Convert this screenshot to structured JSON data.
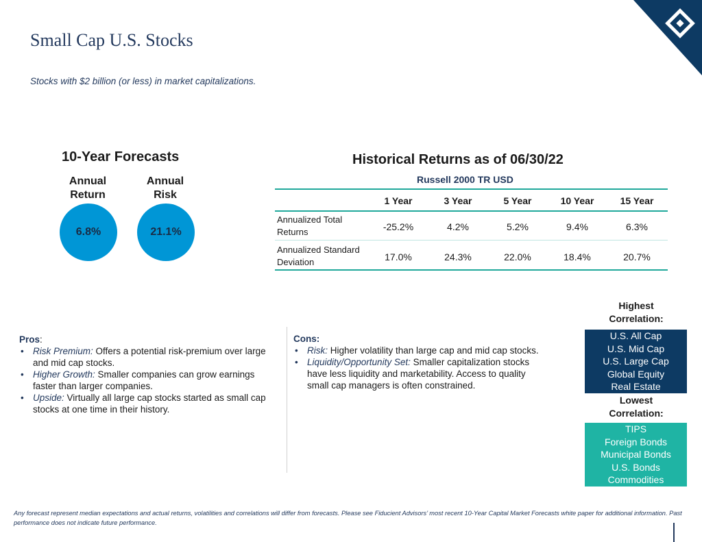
{
  "header": {
    "title": "Small Cap U.S. Stocks",
    "subtitle": "Stocks with $2 billion (or less) in market capitalizations."
  },
  "logo": {
    "icon": "diamond-logo-icon",
    "color": "#0d3a63"
  },
  "forecasts": {
    "heading": "10-Year Forecasts",
    "return_label_1": "Annual",
    "return_label_2": "Return",
    "risk_label_1": "Annual",
    "risk_label_2": "Risk",
    "return_value": "6.8%",
    "risk_value": "21.1%",
    "circle_color": "#0096d6"
  },
  "historical": {
    "heading": "Historical Returns as of 06/30/22",
    "benchmark": "Russell 2000 TR USD",
    "columns": [
      "1 Year",
      "3 Year",
      "5 Year",
      "10 Year",
      "15 Year"
    ],
    "rows": [
      {
        "label": "Annualized Total Returns",
        "values": [
          "-25.2%",
          "4.2%",
          "5.2%",
          "9.4%",
          "6.3%"
        ]
      },
      {
        "label": "Annualized Standard Deviation",
        "values": [
          "17.0%",
          "24.3%",
          "22.0%",
          "18.4%",
          "20.7%"
        ]
      }
    ]
  },
  "pros": {
    "heading": "Pros",
    "items": [
      {
        "term": "Risk Premium:",
        "text": " Offers a potential risk-premium over large and mid cap stocks."
      },
      {
        "term": "Higher Growth:",
        "text": " Smaller companies can grow earnings faster than larger companies."
      },
      {
        "term": "Upside:",
        "text": " Virtually all large cap stocks started as small cap stocks at one time in their history."
      }
    ]
  },
  "cons": {
    "heading": "Cons:",
    "items": [
      {
        "term": "Risk:",
        "text": " Higher volatility than large cap and mid cap stocks."
      },
      {
        "term": "Liquidity/Opportunity Set:",
        "text": " Smaller capitalization stocks have less liquidity and marketability. Access to quality small cap managers is often constrained."
      }
    ]
  },
  "correlation": {
    "highest_label_1": "Highest",
    "highest_label_2": "Correlation:",
    "highest": [
      "U.S. All Cap",
      "U.S. Mid Cap",
      "U.S. Large Cap",
      "Global Equity",
      "Real Estate"
    ],
    "lowest_label_1": "Lowest",
    "lowest_label_2": "Correlation:",
    "lowest": [
      "TIPS",
      "Foreign Bonds",
      "Municipal Bonds",
      "U.S. Bonds",
      "Commodities"
    ],
    "high_color": "#0d3a63",
    "low_color": "#1fb4a4"
  },
  "footnote": "Any forecast represent median expectations and actual returns, volatilities and correlations will differ from forecasts.  Please see Fiducient Advisors’ most recent 10-Year Capital Market Forecasts white paper for additional information.  Past performance does not indicate future performance."
}
